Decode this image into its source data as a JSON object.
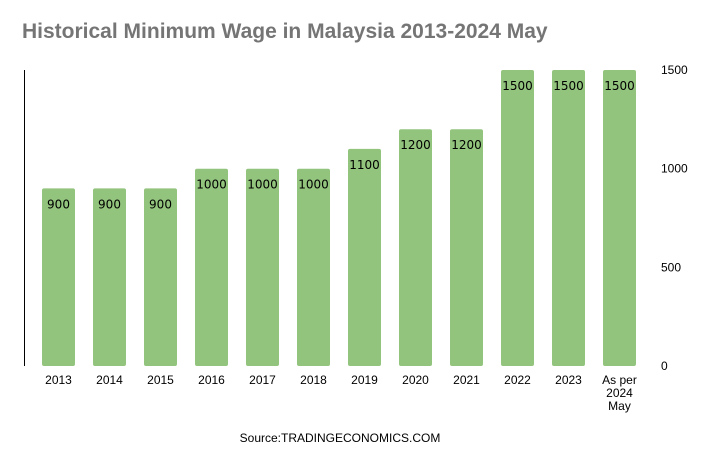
{
  "title": "Historical Minimum Wage in Malaysia 2013-2024 May",
  "source": "Source:TRADINGECONOMICS.COM",
  "colors": {
    "bar": "#93c47d",
    "axis": "#000000",
    "title": "#757575"
  },
  "chart_data": {
    "type": "bar",
    "title": "Historical Minimum Wage in Malaysia 2013-2024 May",
    "xlabel": "",
    "ylabel": "",
    "categories": [
      "2013",
      "2014",
      "2015",
      "2016",
      "2017",
      "2018",
      "2019",
      "2020",
      "2021",
      "2022",
      "2023",
      "As per 2024 May"
    ],
    "category_lines": [
      [
        "2013"
      ],
      [
        "2014"
      ],
      [
        "2015"
      ],
      [
        "2016"
      ],
      [
        "2017"
      ],
      [
        "2018"
      ],
      [
        "2019"
      ],
      [
        "2020"
      ],
      [
        "2021"
      ],
      [
        "2022"
      ],
      [
        "2023"
      ],
      [
        "As per",
        "2024",
        "May"
      ]
    ],
    "values": [
      900,
      900,
      900,
      1000,
      1000,
      1000,
      1100,
      1200,
      1200,
      1500,
      1500,
      1500
    ],
    "data_labels": true,
    "ylim": [
      0,
      1500
    ],
    "yticks": [
      0,
      500,
      1000,
      1500
    ],
    "y_axis_side": "right",
    "grid": false,
    "legend": "none"
  }
}
